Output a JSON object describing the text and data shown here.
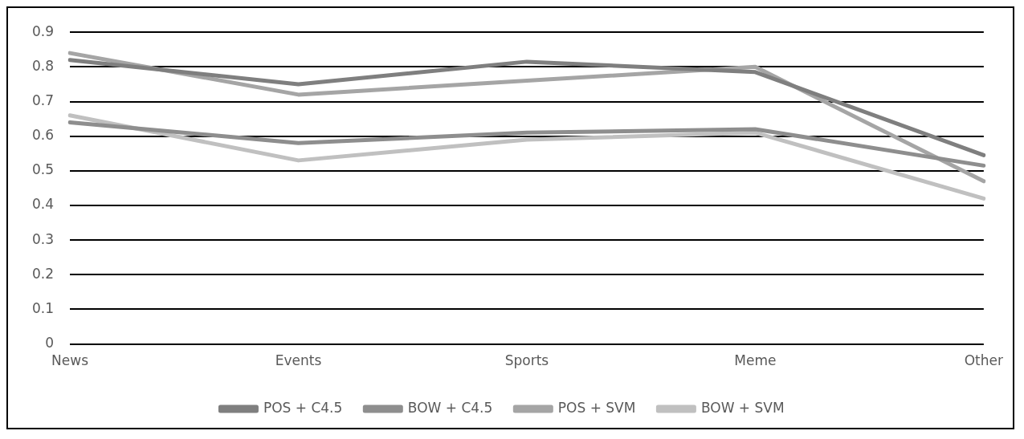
{
  "chart_data": {
    "type": "line",
    "categories": [
      "News",
      "Events",
      "Sports",
      "Meme",
      "Other"
    ],
    "series": [
      {
        "name": "POS + C4.5",
        "color": "#7f7f7f",
        "values": [
          0.82,
          0.75,
          0.815,
          0.785,
          0.545
        ]
      },
      {
        "name": "BOW + C4.5",
        "color": "#8e8e8e",
        "values": [
          0.64,
          0.58,
          0.61,
          0.62,
          0.515
        ]
      },
      {
        "name": "POS + SVM",
        "color": "#a5a5a5",
        "values": [
          0.84,
          0.72,
          0.76,
          0.8,
          0.47
        ]
      },
      {
        "name": "BOW + SVM",
        "color": "#c0c0c0",
        "values": [
          0.66,
          0.53,
          0.59,
          0.61,
          0.42
        ]
      }
    ],
    "ylim": [
      0,
      0.9
    ],
    "yticks": [
      0,
      0.1,
      0.2,
      0.3,
      0.4,
      0.5,
      0.6,
      0.7,
      0.8,
      0.9
    ],
    "grid": "y",
    "legend": "bottom",
    "marker": "none",
    "line_style": "solid"
  }
}
